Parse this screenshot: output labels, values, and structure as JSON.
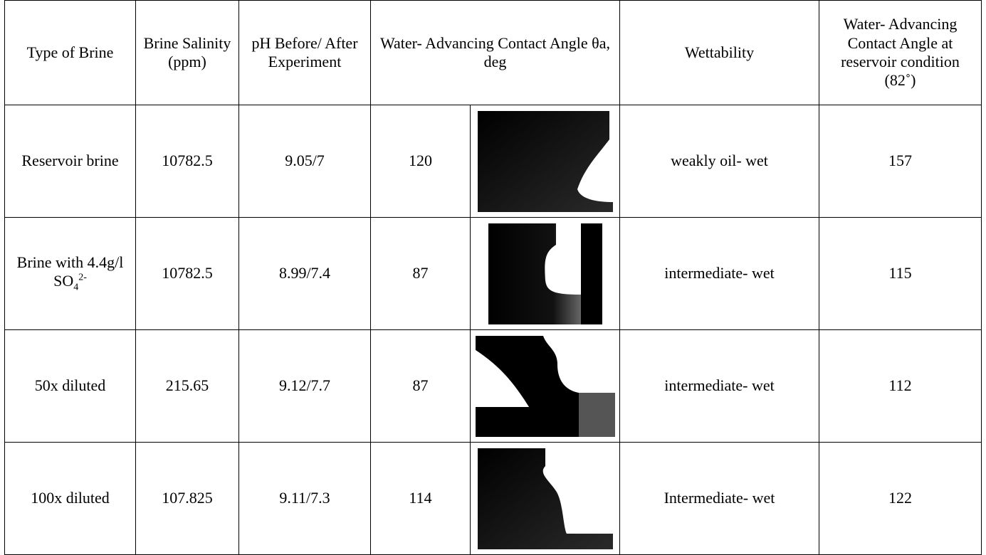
{
  "table": {
    "headers": [
      "Type of Brine",
      "Brine Salinity (ppm)",
      "pH Before/ After Experiment",
      "Water- Advancing Contact Angle θa, deg",
      "Wettability",
      "Water- Advancing Contact Angle at reservoir condition (82˚)"
    ],
    "rows": [
      [
        {
          "text": "Reservoir brine"
        },
        "10782.5",
        "9.05/7",
        "120",
        "weakly oil- wet",
        "157"
      ],
      [
        {
          "text": "Brine with 4.4g/l SO",
          "sub": "4",
          "sup": "2-"
        },
        "10782.5",
        "8.99/7.4",
        "87",
        "intermediate- wet",
        "115"
      ],
      [
        {
          "text": "50x diluted"
        },
        "215.65",
        "9.12/7.7",
        "87",
        "intermediate- wet",
        "112"
      ],
      [
        {
          "text": "100x diluted"
        },
        "107.825",
        "9.11/7.3",
        "114",
        "Intermediate- wet",
        "122"
      ]
    ]
  }
}
